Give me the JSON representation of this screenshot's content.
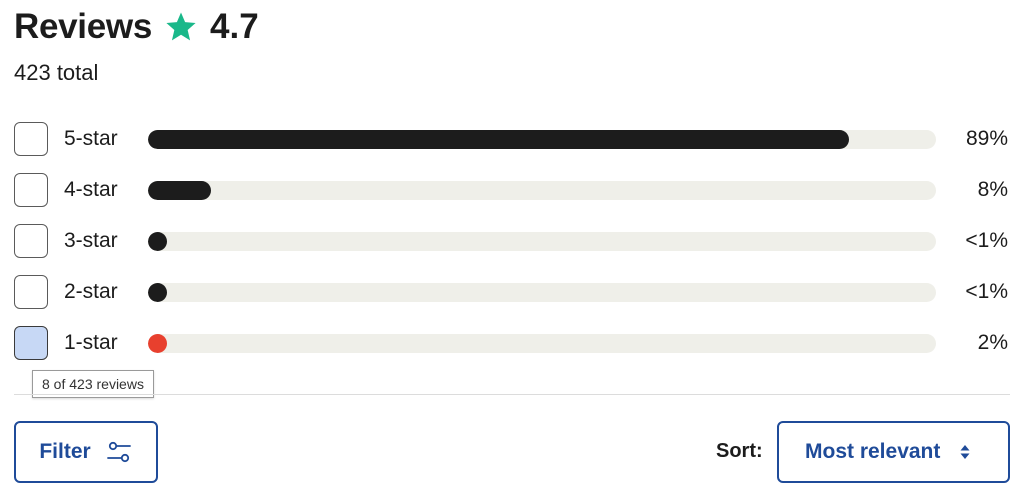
{
  "header": {
    "title": "Reviews",
    "rating": "4.7",
    "total": "423 total",
    "star_icon": "star-icon",
    "star_color": "#1ab88a"
  },
  "breakdown": [
    {
      "label": "5-star",
      "percent_text": "89%",
      "fill_fraction": 0.89,
      "checked": false,
      "bar_color": "#1c1c1c"
    },
    {
      "label": "4-star",
      "percent_text": "8%",
      "fill_fraction": 0.08,
      "checked": false,
      "bar_color": "#1c1c1c"
    },
    {
      "label": "3-star",
      "percent_text": "<1%",
      "fill_fraction": 0.005,
      "checked": false,
      "bar_color": "#1c1c1c"
    },
    {
      "label": "2-star",
      "percent_text": "<1%",
      "fill_fraction": 0.005,
      "checked": false,
      "bar_color": "#1c1c1c"
    },
    {
      "label": "1-star",
      "percent_text": "2%",
      "fill_fraction": 0.02,
      "checked": true,
      "bar_color": "#e8402e"
    }
  ],
  "tooltip": {
    "text": "8 of 423 reviews"
  },
  "controls": {
    "filter_label": "Filter",
    "filter_icon": "sliders-icon",
    "sort_label": "Sort:",
    "sort_value": "Most relevant",
    "sort_icon": "updown-chevron-icon",
    "accent_color": "#1f4b99"
  }
}
